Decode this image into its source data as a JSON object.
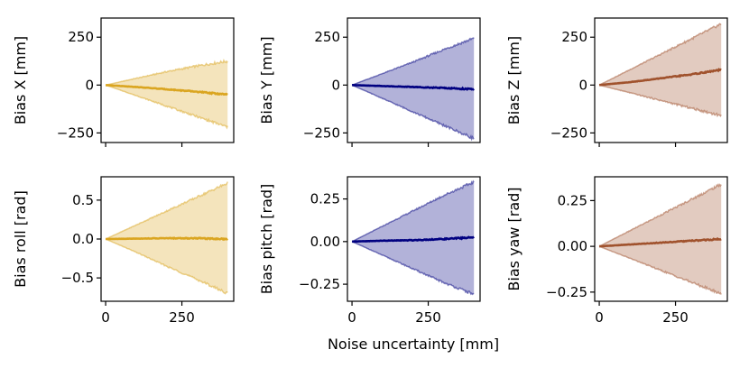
{
  "figure": {
    "xlabel": "Noise uncertainty [mm]"
  },
  "colors": {
    "gold": "#DAA520",
    "navy": "#000080",
    "sienna": "#A0522D"
  },
  "chart_data": [
    {
      "type": "area",
      "name": "bias-x",
      "ylabel": "Bias X [mm]",
      "color": "#DAA520",
      "xlim": [
        -15,
        420
      ],
      "ylim": [
        -300,
        350
      ],
      "xticks": [
        0,
        250
      ],
      "xtick_labels_visible": false,
      "yticks": [
        -250,
        0,
        250
      ],
      "ytick_labels": [
        "−250",
        "0",
        "250"
      ],
      "x": [
        0,
        100,
        200,
        300,
        400
      ],
      "upper": [
        0,
        35,
        70,
        100,
        125
      ],
      "lower": [
        0,
        -55,
        -110,
        -165,
        -220
      ],
      "mean": [
        0,
        -10,
        -22,
        -35,
        -50
      ]
    },
    {
      "type": "area",
      "name": "bias-y",
      "ylabel": "Bias Y [mm]",
      "color": "#000080",
      "xlim": [
        -15,
        420
      ],
      "ylim": [
        -300,
        350
      ],
      "xticks": [
        0,
        250
      ],
      "xtick_labels_visible": false,
      "yticks": [
        -250,
        0,
        250
      ],
      "ytick_labels": [
        "−250",
        "0",
        "250"
      ],
      "x": [
        0,
        100,
        200,
        300,
        400
      ],
      "upper": [
        0,
        60,
        120,
        185,
        245
      ],
      "lower": [
        0,
        -70,
        -140,
        -210,
        -280
      ],
      "mean": [
        0,
        -5,
        -10,
        -15,
        -22
      ]
    },
    {
      "type": "area",
      "name": "bias-z",
      "ylabel": "Bias Z [mm]",
      "color": "#A0522D",
      "xlim": [
        -15,
        420
      ],
      "ylim": [
        -300,
        350
      ],
      "xticks": [
        0,
        250
      ],
      "xtick_labels_visible": false,
      "yticks": [
        -250,
        0,
        250
      ],
      "ytick_labels": [
        "−250",
        "0",
        "250"
      ],
      "x": [
        0,
        100,
        200,
        300,
        400
      ],
      "upper": [
        0,
        80,
        160,
        240,
        320
      ],
      "lower": [
        0,
        -40,
        -80,
        -120,
        -160
      ],
      "mean": [
        0,
        15,
        35,
        55,
        80
      ]
    },
    {
      "type": "area",
      "name": "bias-roll",
      "ylabel": "Bias roll [rad]",
      "color": "#DAA520",
      "xlim": [
        -15,
        420
      ],
      "ylim": [
        -0.8,
        0.8
      ],
      "xticks": [
        0,
        250
      ],
      "xtick_labels_visible": true,
      "yticks": [
        -0.5,
        0,
        0.5
      ],
      "ytick_labels": [
        "−0.5",
        "0.0",
        "0.5"
      ],
      "x": [
        0,
        100,
        200,
        300,
        400
      ],
      "upper": [
        0,
        0.18,
        0.36,
        0.54,
        0.72
      ],
      "lower": [
        0,
        -0.17,
        -0.35,
        -0.52,
        -0.7
      ],
      "mean": [
        0,
        0.005,
        0.01,
        0.01,
        0.0
      ]
    },
    {
      "type": "area",
      "name": "bias-pitch",
      "ylabel": "Bias pitch [rad]",
      "color": "#000080",
      "xlim": [
        -15,
        420
      ],
      "ylim": [
        -0.35,
        0.38
      ],
      "xticks": [
        0,
        250
      ],
      "xtick_labels_visible": true,
      "yticks": [
        -0.25,
        0,
        0.25
      ],
      "ytick_labels": [
        "−0.25",
        "0.00",
        "0.25"
      ],
      "x": [
        0,
        100,
        200,
        300,
        400
      ],
      "upper": [
        0,
        0.09,
        0.18,
        0.27,
        0.35
      ],
      "lower": [
        0,
        -0.08,
        -0.16,
        -0.24,
        -0.31
      ],
      "mean": [
        0,
        0.005,
        0.008,
        0.015,
        0.025
      ]
    },
    {
      "type": "area",
      "name": "bias-yaw",
      "ylabel": "Bias yaw [rad]",
      "color": "#A0522D",
      "xlim": [
        -15,
        420
      ],
      "ylim": [
        -0.3,
        0.38
      ],
      "xticks": [
        0,
        250
      ],
      "xtick_labels_visible": true,
      "yticks": [
        -0.25,
        0,
        0.25
      ],
      "ytick_labels": [
        "−0.25",
        "0.00",
        "0.25"
      ],
      "x": [
        0,
        100,
        200,
        300,
        400
      ],
      "upper": [
        0,
        0.085,
        0.17,
        0.255,
        0.34
      ],
      "lower": [
        0,
        -0.065,
        -0.13,
        -0.195,
        -0.26
      ],
      "mean": [
        0,
        0.01,
        0.02,
        0.03,
        0.04
      ]
    }
  ]
}
